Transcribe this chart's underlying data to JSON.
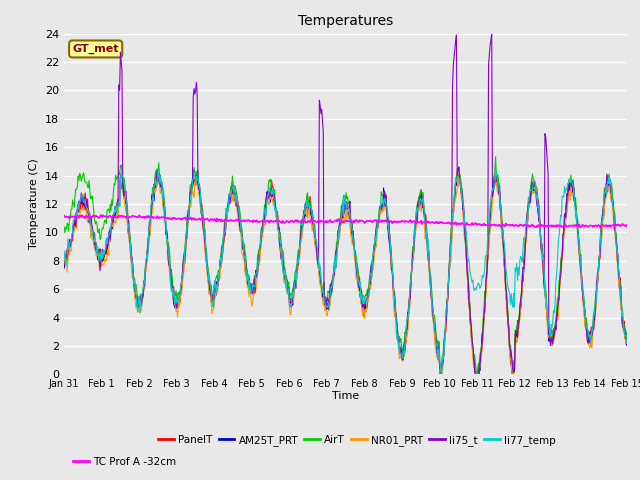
{
  "title": "Temperatures",
  "xlabel": "Time",
  "ylabel": "Temperature (C)",
  "ylim": [
    0,
    24
  ],
  "yticks": [
    0,
    2,
    4,
    6,
    8,
    10,
    12,
    14,
    16,
    18,
    20,
    22,
    24
  ],
  "x_labels": [
    "Jan 31",
    "Feb 1",
    "Feb 2",
    "Feb 3",
    "Feb 4",
    "Feb 5",
    "Feb 6",
    "Feb 7",
    "Feb 8",
    "Feb 9",
    "Feb 10",
    "Feb 11",
    "Feb 12",
    "Feb 13",
    "Feb 14",
    "Feb 15"
  ],
  "series_colors": {
    "PanelT": "#ff0000",
    "AM25T_PRT": "#0000cc",
    "AirT": "#00cc00",
    "NR01_PRT": "#ff9900",
    "li75_t": "#8800cc",
    "li77_temp": "#00cccc",
    "TC Prof A -32cm": "#ff00ff"
  },
  "gt_met_box_color": "#ffff99",
  "gt_met_text_color": "#880000",
  "background_color": "#e8e8e8",
  "figsize": [
    6.4,
    4.8
  ],
  "dpi": 100
}
